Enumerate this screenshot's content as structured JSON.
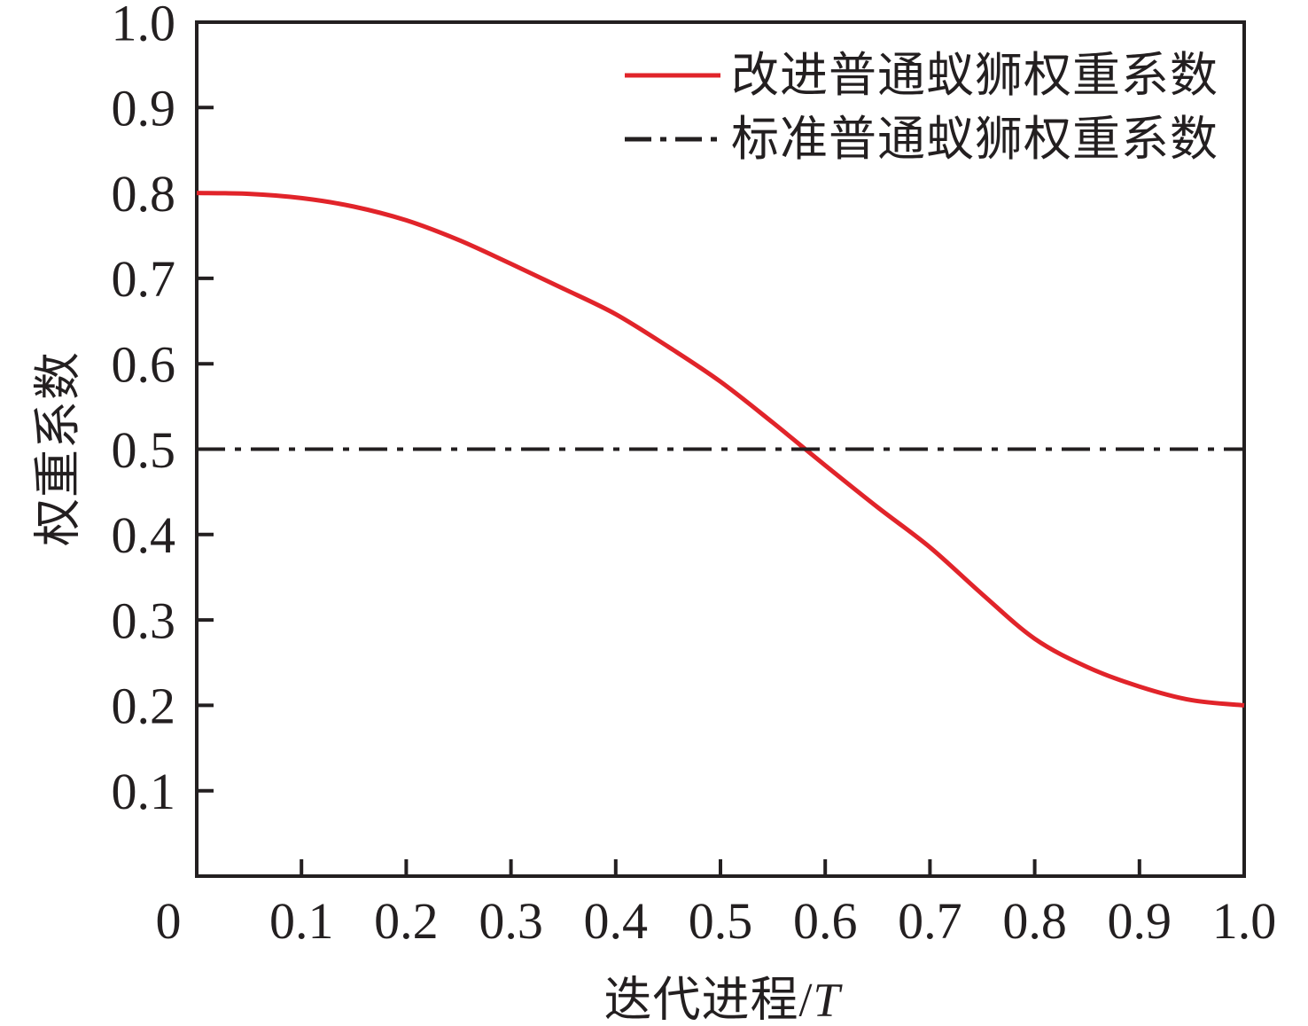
{
  "figure": {
    "background": "#ffffff",
    "axis_color": "#231f20",
    "text_color": "#231f20"
  },
  "chart_data": {
    "type": "line",
    "title": "",
    "xlabel": "迭代进程/T",
    "xlabel_prefix": "迭代进程/",
    "xlabel_variable": "T",
    "ylabel": "权重系数",
    "xlim": [
      0,
      1.0
    ],
    "ylim": [
      0,
      1.0
    ],
    "grid": false,
    "legend_position": "upper-right-inside",
    "x_ticks": [
      0,
      0.1,
      0.2,
      0.3,
      0.4,
      0.5,
      0.6,
      0.7,
      0.8,
      0.9,
      1.0
    ],
    "x_tick_labels": [
      "0",
      "0.1",
      "0.2",
      "0.3",
      "0.4",
      "0.5",
      "0.6",
      "0.7",
      "0.8",
      "0.9",
      "1.0"
    ],
    "y_ticks": [
      0.1,
      0.2,
      0.3,
      0.4,
      0.5,
      0.6,
      0.7,
      0.8,
      0.9,
      1.0
    ],
    "y_tick_labels": [
      "0.1",
      "0.2",
      "0.3",
      "0.4",
      "0.5",
      "0.6",
      "0.7",
      "0.8",
      "0.9",
      "1.0"
    ],
    "series": [
      {
        "name": "改进普通蚁狮权重系数",
        "style": "solid",
        "color": "#e1242a",
        "x": [
          0,
          0.05,
          0.1,
          0.15,
          0.2,
          0.25,
          0.3,
          0.35,
          0.4,
          0.45,
          0.5,
          0.55,
          0.6,
          0.65,
          0.7,
          0.75,
          0.8,
          0.85,
          0.9,
          0.95,
          1.0
        ],
        "y": [
          0.8,
          0.799,
          0.794,
          0.784,
          0.768,
          0.745,
          0.717,
          0.688,
          0.658,
          0.62,
          0.579,
          0.531,
          0.481,
          0.432,
          0.385,
          0.33,
          0.278,
          0.245,
          0.222,
          0.206,
          0.2
        ]
      },
      {
        "name": "标准普通蚁狮权重系数",
        "style": "dash-dot",
        "color": "#231f20",
        "x": [
          0,
          1.0
        ],
        "y": [
          0.5,
          0.5
        ]
      }
    ]
  }
}
